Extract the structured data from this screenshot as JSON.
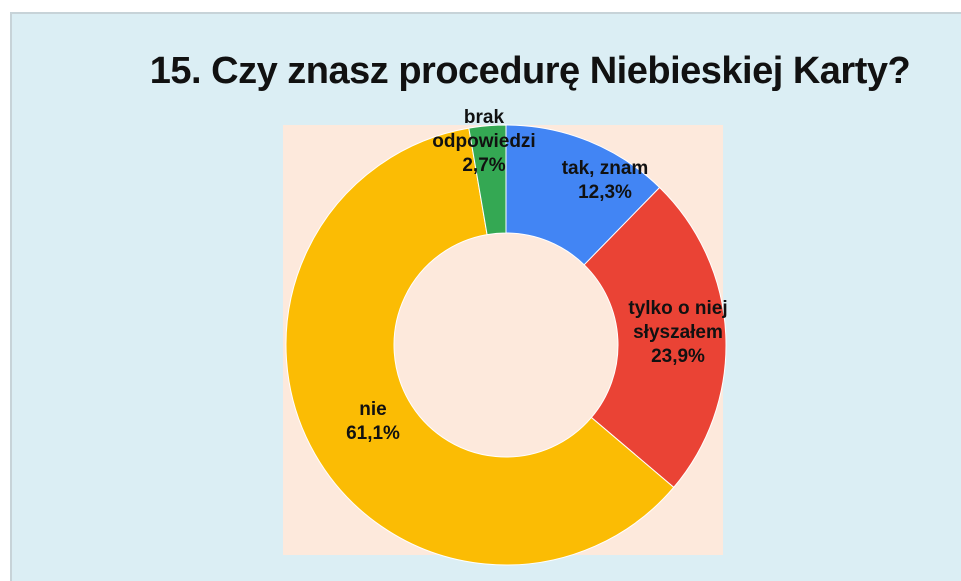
{
  "chart_data": {
    "type": "donut",
    "title": "15. Czy znasz procedurę Niebieskiej Karty?",
    "categories": [
      "tak, znam",
      "tylko o niej słyszałem",
      "nie",
      "brak odpowiedzi"
    ],
    "values": [
      12.3,
      23.9,
      61.1,
      2.7
    ],
    "value_labels": [
      "12,3%",
      "23,9%",
      "61,1%",
      "2,7%"
    ],
    "colors": [
      "#4285f4",
      "#ea4335",
      "#fbbc04",
      "#34a853"
    ]
  }
}
